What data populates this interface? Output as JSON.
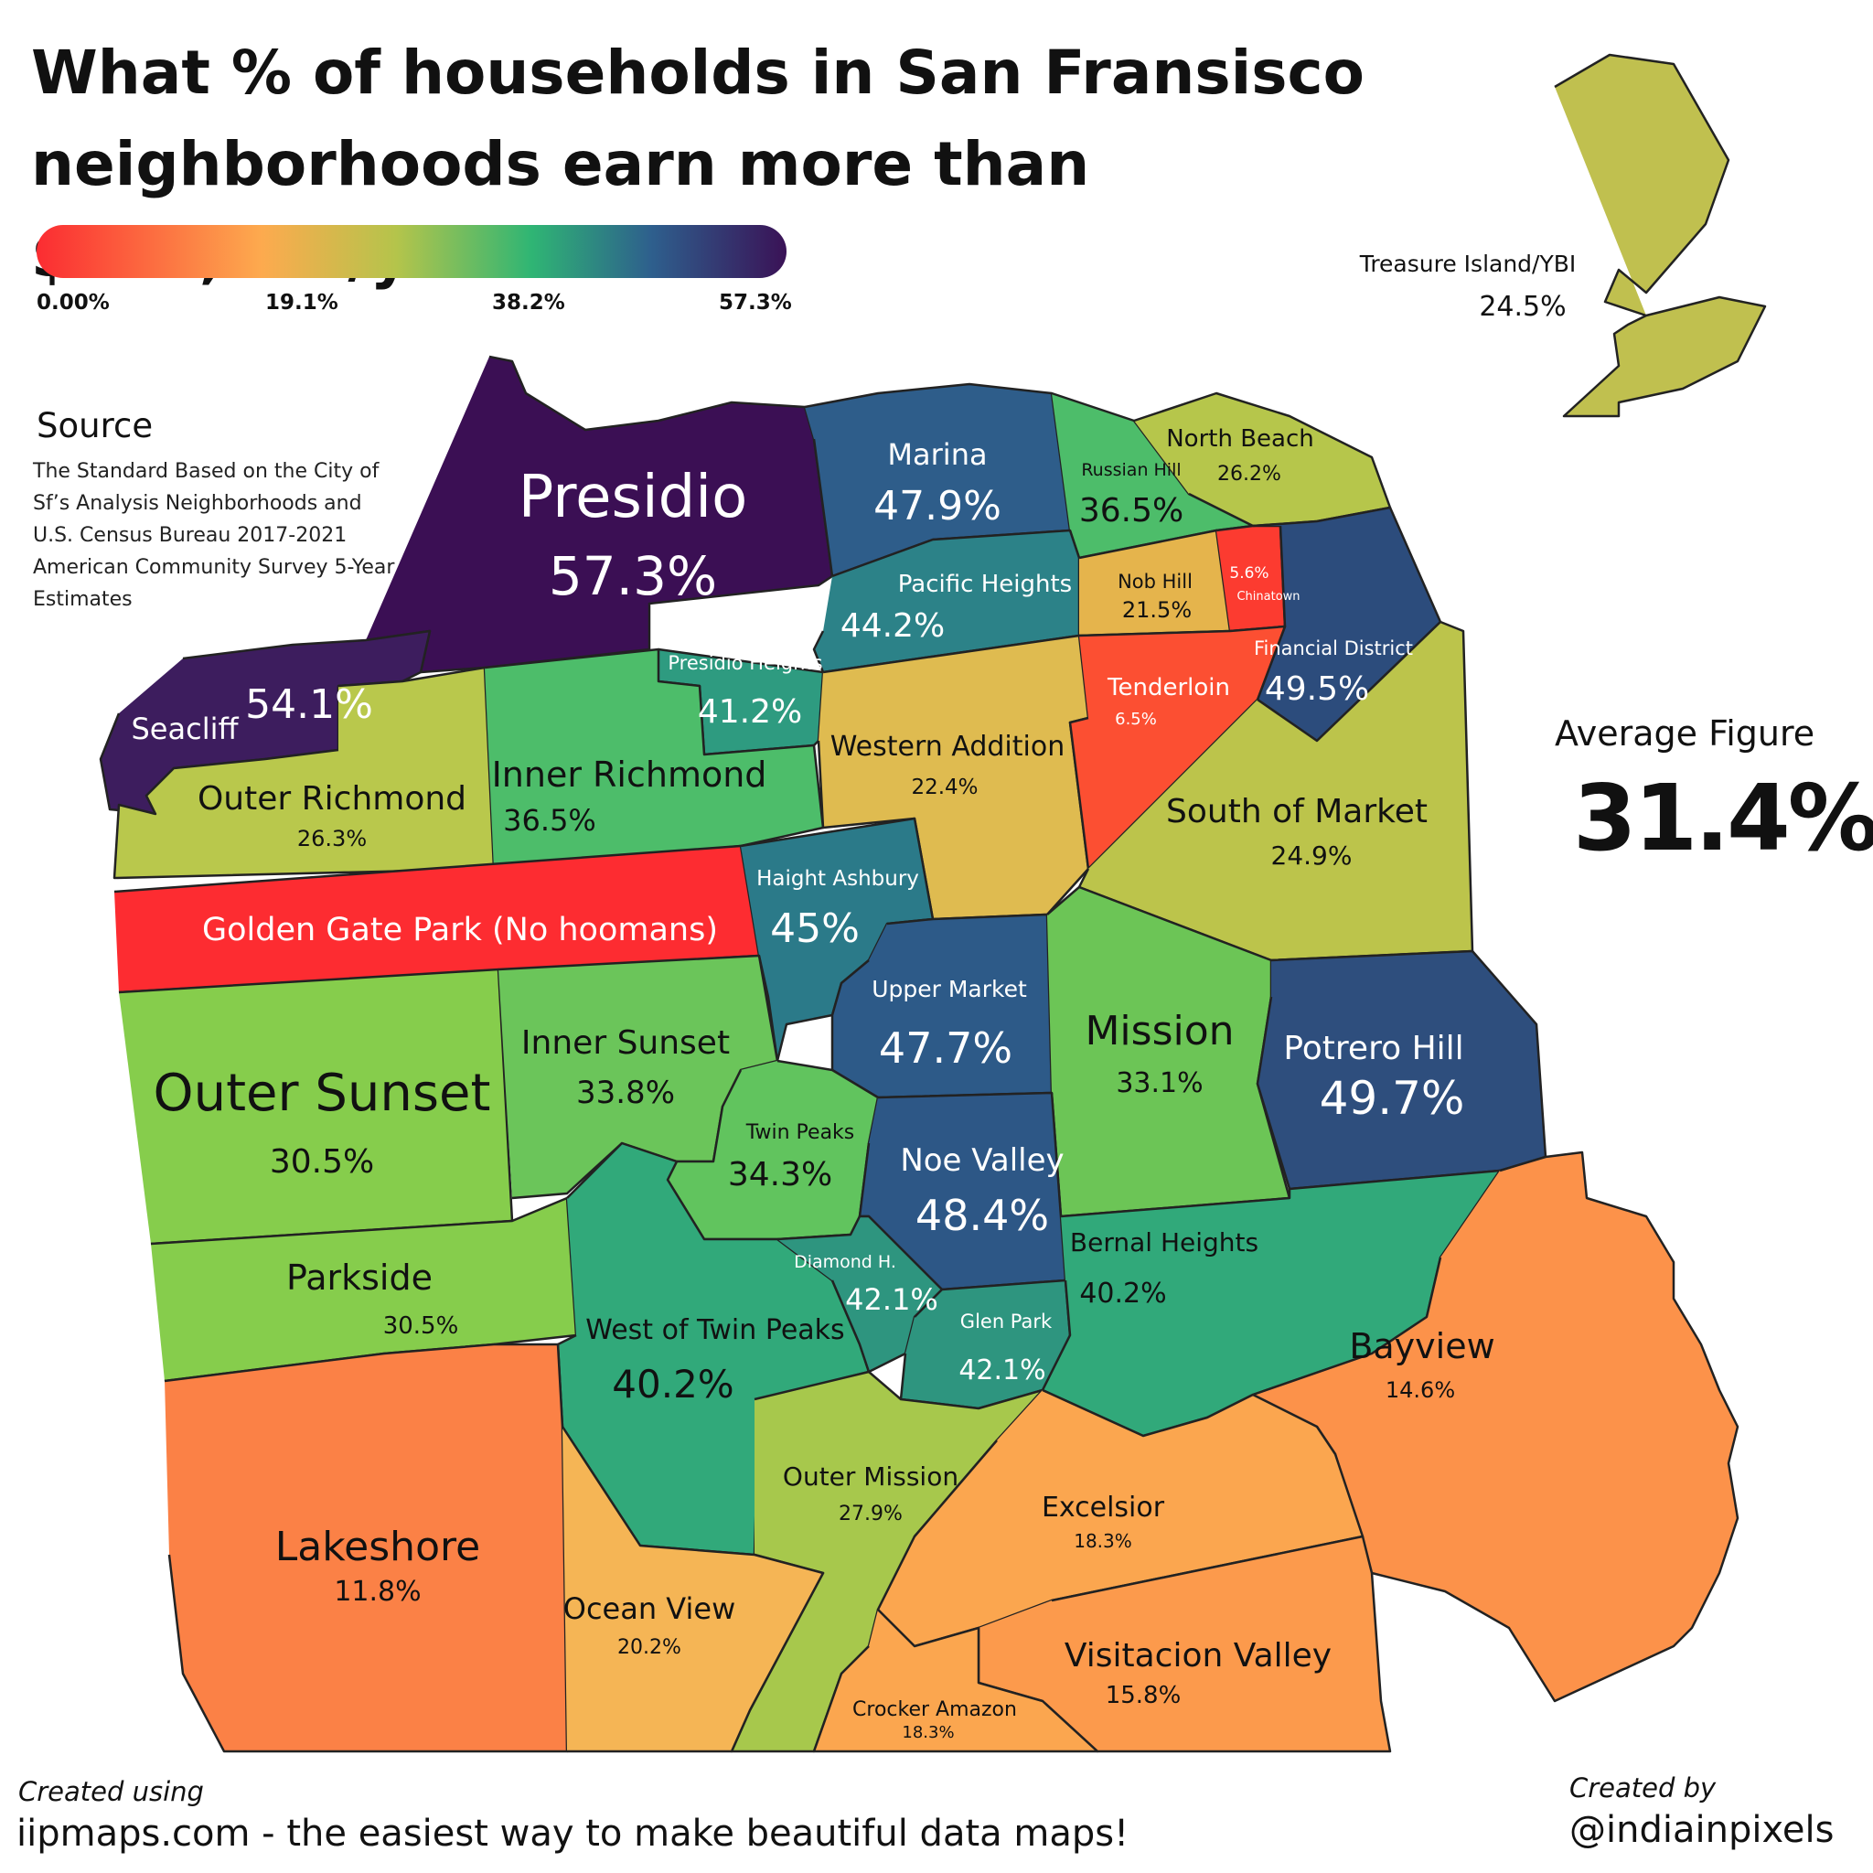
{
  "title": "What % of households in San Fransisco neighborhoods earn more than $200,000/year?",
  "legend": {
    "colors": [
      "#fb2c32",
      "#fdaa4e",
      "#b4c44b",
      "#2fb574",
      "#2e5f8d",
      "#3a1256"
    ],
    "ticks": [
      "0.00%",
      "19.1%",
      "38.2%",
      "57.3%"
    ]
  },
  "source": {
    "heading": "Source",
    "text": "The Standard Based on the City of Sf’s Analysis Neighborhoods and U.S. Census Bureau 2017-2021 American Community Survey 5-Year Estimates"
  },
  "average": {
    "label": "Average Figure",
    "value": "31.4%"
  },
  "neighborhoods": [
    {
      "name": "Presidio",
      "value": "57.3%",
      "color": "#3b0f54"
    },
    {
      "name": "Seacliff",
      "value": "54.1%",
      "color": "#3d1d5e"
    },
    {
      "name": "Marina",
      "value": "47.9%",
      "color": "#2e5d8a"
    },
    {
      "name": "Russian Hill",
      "value": "36.5%",
      "color": "#4dbd6a"
    },
    {
      "name": "North Beach",
      "value": "26.2%",
      "color": "#b6c64b"
    },
    {
      "name": "Pacific Heights",
      "value": "44.2%",
      "color": "#2c8288"
    },
    {
      "name": "Nob Hill",
      "value": "21.5%",
      "color": "#e5b44c"
    },
    {
      "name": "Chinatown",
      "value": "5.6%",
      "color": "#fc3b30"
    },
    {
      "name": "Financial District",
      "value": "49.5%",
      "color": "#2c4c7c"
    },
    {
      "name": "Presidio Heights",
      "value": "41.2%",
      "color": "#2e9b80"
    },
    {
      "name": "Outer Richmond",
      "value": "26.3%",
      "color": "#b9c84c"
    },
    {
      "name": "Inner Richmond",
      "value": "36.5%",
      "color": "#4dbd6a"
    },
    {
      "name": "Western Addition",
      "value": "22.4%",
      "color": "#dfbb50"
    },
    {
      "name": "Tenderloin",
      "value": "6.5%",
      "color": "#fc4f32"
    },
    {
      "name": "South of Market",
      "value": "24.9%",
      "color": "#bcc44b"
    },
    {
      "name": "Golden Gate Park (No hoomans)",
      "value": "",
      "color": "#fd2c31"
    },
    {
      "name": "Haight Ashbury",
      "value": "45%",
      "color": "#2b7a89"
    },
    {
      "name": "Upper Market",
      "value": "47.7%",
      "color": "#2d5a88"
    },
    {
      "name": "Mission",
      "value": "33.1%",
      "color": "#6cc556"
    },
    {
      "name": "Potrero Hill",
      "value": "49.7%",
      "color": "#2e4e7d"
    },
    {
      "name": "Outer Sunset",
      "value": "30.5%",
      "color": "#86cd4c"
    },
    {
      "name": "Inner Sunset",
      "value": "33.8%",
      "color": "#6bc55a"
    },
    {
      "name": "Twin Peaks",
      "value": "34.3%",
      "color": "#61c45e"
    },
    {
      "name": "Noe Valley",
      "value": "48.4%",
      "color": "#2d5786"
    },
    {
      "name": "Parkside",
      "value": "30.5%",
      "color": "#86cd4c"
    },
    {
      "name": "West of Twin Peaks",
      "value": "40.2%",
      "color": "#31a97a"
    },
    {
      "name": "Diamond H.",
      "value": "42.1%",
      "color": "#2e957f"
    },
    {
      "name": "Glen Park",
      "value": "42.1%",
      "color": "#2e957f"
    },
    {
      "name": "Bernal Heights",
      "value": "40.2%",
      "color": "#31a97a"
    },
    {
      "name": "Bayview",
      "value": "14.6%",
      "color": "#fc924a"
    },
    {
      "name": "Lakeshore",
      "value": "11.8%",
      "color": "#fb8146"
    },
    {
      "name": "Outer Mission",
      "value": "27.9%",
      "color": "#a7c84c"
    },
    {
      "name": "Excelsior",
      "value": "18.3%",
      "color": "#fba64f"
    },
    {
      "name": "Ocean View",
      "value": "20.2%",
      "color": "#f5b555"
    },
    {
      "name": "Visitacion Valley",
      "value": "15.8%",
      "color": "#fc9a4c"
    },
    {
      "name": "Crocker Amazon",
      "value": "18.3%",
      "color": "#fba64f"
    },
    {
      "name": "Treasure Island/YBI",
      "value": "24.5%",
      "color": "#c0c04f"
    }
  ],
  "footer": {
    "created_using": "Created using",
    "site": "iipmaps.com - the easiest way to make beautiful data maps!",
    "created_by": "Created by",
    "author": "@indiainpixels"
  }
}
